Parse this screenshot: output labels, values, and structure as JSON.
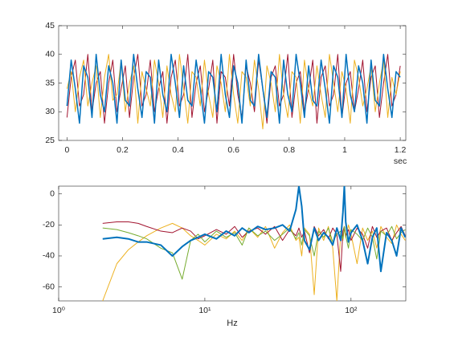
{
  "chart_data": [
    {
      "type": "line",
      "xlabel": "sec",
      "x": [
        0,
        0.015,
        0.03,
        0.045,
        0.06,
        0.075,
        0.09,
        0.105,
        0.12,
        0.135,
        0.15,
        0.165,
        0.18,
        0.195,
        0.21,
        0.225,
        0.24,
        0.255,
        0.27,
        0.285,
        0.3,
        0.315,
        0.33,
        0.345,
        0.36,
        0.375,
        0.39,
        0.405,
        0.42,
        0.435,
        0.45,
        0.465,
        0.48,
        0.495,
        0.51,
        0.525,
        0.54,
        0.555,
        0.57,
        0.585,
        0.6,
        0.615,
        0.63,
        0.645,
        0.66,
        0.675,
        0.69,
        0.705,
        0.72,
        0.735,
        0.75,
        0.765,
        0.78,
        0.795,
        0.81,
        0.825,
        0.84,
        0.855,
        0.87,
        0.885,
        0.9,
        0.915,
        0.93,
        0.945,
        0.96,
        0.975,
        0.99,
        1.005,
        1.02,
        1.035,
        1.05,
        1.065,
        1.08,
        1.095,
        1.11,
        1.125,
        1.14,
        1.155,
        1.17,
        1.185,
        1.2
      ],
      "series": [
        {
          "color": "#A2142F",
          "linewidth": 1,
          "values": [
            29,
            36,
            39,
            31,
            33,
            40,
            30,
            35,
            37,
            28,
            35,
            39,
            30,
            34,
            38,
            29,
            36,
            40,
            31,
            33,
            39,
            30,
            34,
            37,
            28,
            36,
            39,
            31,
            33,
            40,
            29,
            35,
            38,
            30,
            34,
            39,
            28,
            37,
            36,
            31,
            40,
            33,
            29,
            38,
            35,
            30,
            39,
            34,
            28,
            36,
            38,
            31,
            33,
            40,
            29,
            35,
            37,
            30,
            34,
            39,
            28,
            36,
            38,
            31,
            33,
            40,
            29,
            35,
            37,
            30,
            34,
            39,
            30,
            36,
            38,
            29,
            35,
            40,
            31,
            33,
            38
          ]
        },
        {
          "color": "#EDB120",
          "linewidth": 1,
          "values": [
            34,
            37,
            30,
            36,
            39,
            31,
            35,
            38,
            29,
            36,
            40,
            32,
            33,
            39,
            30,
            35,
            38,
            28,
            37,
            34,
            31,
            39,
            35,
            29,
            38,
            33,
            30,
            40,
            34,
            28,
            37,
            36,
            31,
            39,
            33,
            29,
            38,
            35,
            30,
            40,
            33,
            28,
            37,
            36,
            31,
            39,
            34,
            27,
            38,
            35,
            30,
            40,
            33,
            29,
            37,
            36,
            28,
            39,
            34,
            31,
            38,
            33,
            29,
            40,
            35,
            30,
            37,
            34,
            28,
            39,
            36,
            31,
            34,
            38,
            30,
            35,
            39,
            29,
            36,
            33,
            37
          ]
        },
        {
          "color": "#0072BD",
          "linewidth": 1.5,
          "values": [
            31,
            39,
            34,
            28,
            38,
            36,
            29,
            40,
            33,
            30,
            38,
            35,
            28,
            39,
            32,
            31,
            40,
            34,
            29,
            37,
            36,
            28,
            39,
            33,
            30,
            40,
            35,
            29,
            38,
            32,
            31,
            39,
            34,
            28,
            37,
            36,
            30,
            40,
            33,
            29,
            38,
            35,
            28,
            39,
            32,
            31,
            40,
            34,
            29,
            37,
            36,
            28,
            39,
            33,
            30,
            40,
            35,
            29,
            38,
            32,
            31,
            39,
            34,
            28,
            38,
            36,
            29,
            40,
            33,
            30,
            38,
            35,
            28,
            39,
            32,
            31,
            40,
            34,
            29,
            37,
            36
          ]
        }
      ],
      "xlim": [
        -0.03,
        1.22
      ],
      "xticks": [
        0,
        0.2,
        0.4,
        0.6,
        0.8,
        1,
        1.2
      ],
      "ylim": [
        25,
        45
      ],
      "yticks": [
        25,
        30,
        35,
        40,
        45
      ]
    },
    {
      "type": "line",
      "xlabel": "Hz",
      "xscale": "log",
      "x": [
        2,
        2.5,
        3,
        3.5,
        4,
        5,
        6,
        7,
        8,
        9,
        10,
        12,
        14,
        16,
        18,
        20,
        23,
        26,
        30,
        34,
        38,
        42,
        44,
        46,
        48,
        52,
        56,
        60,
        65,
        70,
        75,
        80,
        85,
        88,
        90,
        92,
        96,
        100,
        110,
        120,
        130,
        140,
        150,
        160,
        175,
        190,
        205,
        220,
        235
      ],
      "series": [
        {
          "color": "#EDB120",
          "linewidth": 1,
          "values": [
            -69,
            -45,
            -36,
            -31,
            -27,
            -22,
            -19,
            -22,
            -27,
            -30,
            -33,
            -26,
            -29,
            -24,
            -30,
            -22,
            -28,
            -21,
            -35,
            -25,
            -20,
            -30,
            -28,
            -40,
            -22,
            -26,
            -65,
            -22,
            -30,
            -21,
            -35,
            -69,
            -25,
            -30,
            -22,
            -28,
            -20,
            -26,
            -45,
            -22,
            -30,
            -24,
            -35,
            -21,
            -28,
            -32,
            -20,
            -26,
            -30
          ]
        },
        {
          "color": "#A2142F",
          "linewidth": 1,
          "values": [
            -19,
            -18,
            -18,
            -19,
            -21,
            -24,
            -25,
            -22,
            -24,
            -29,
            -27,
            -23,
            -26,
            -21,
            -28,
            -24,
            -22,
            -26,
            -21,
            -30,
            -23,
            -27,
            -22,
            -28,
            -24,
            -38,
            -21,
            -27,
            -23,
            -29,
            -22,
            -26,
            -50,
            -24,
            -21,
            -27,
            -23,
            -30,
            -22,
            -26,
            -35,
            -21,
            -28,
            -24,
            -22,
            -30,
            -25,
            -21,
            -27
          ]
        },
        {
          "color": "#77AC30",
          "linewidth": 1,
          "values": [
            -22,
            -23,
            -25,
            -27,
            -29,
            -35,
            -38,
            -55,
            -30,
            -26,
            -31,
            -24,
            -28,
            -25,
            -33,
            -22,
            -27,
            -24,
            -30,
            -26,
            -22,
            -29,
            -25,
            -33,
            -23,
            -27,
            -40,
            -24,
            -28,
            -22,
            -31,
            -26,
            -24,
            -29,
            -21,
            -27,
            -35,
            -23,
            -26,
            -30,
            -22,
            -28,
            -42,
            -24,
            -27,
            -21,
            -29,
            -25,
            -23
          ]
        },
        {
          "color": "#0072BD",
          "linewidth": 2,
          "values": [
            -29,
            -28,
            -29,
            -31,
            -31,
            -33,
            -40,
            -34,
            -30,
            -28,
            -26,
            -29,
            -24,
            -27,
            -22,
            -25,
            -21,
            -23,
            -22,
            -20,
            -24,
            -10,
            5,
            -8,
            -30,
            -36,
            -22,
            -30,
            -25,
            -28,
            -33,
            -22,
            -30,
            -12,
            5,
            -18,
            -31,
            -25,
            -20,
            -30,
            -45,
            -28,
            -22,
            -50,
            -25,
            -30,
            -40,
            -22,
            -28
          ]
        }
      ],
      "xlim": [
        1,
        237
      ],
      "xticks": [
        {
          "value": 1,
          "label": "10⁰"
        },
        {
          "value": 10,
          "label": "10¹"
        },
        {
          "value": 100,
          "label": "10²"
        }
      ],
      "ylim": [
        -69,
        5
      ],
      "yticks": [
        -60,
        -40,
        -20,
        0
      ]
    }
  ]
}
